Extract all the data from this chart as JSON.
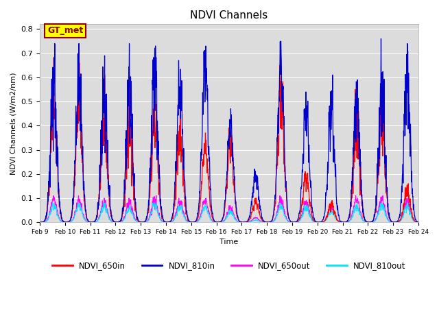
{
  "title": "NDVI Channels",
  "xlabel": "Time",
  "ylabel": "NDVI Channels (W/m2/nm)",
  "ylim": [
    0.0,
    0.82
  ],
  "yticks": [
    0.0,
    0.1,
    0.2,
    0.3,
    0.4,
    0.5,
    0.6,
    0.7,
    0.8
  ],
  "bg_color": "#dcdcdc",
  "annotation_text": "GT_met",
  "annotation_bg": "#ffff00",
  "annotation_border": "#8b0000",
  "colors": {
    "NDVI_650in": "#ff0000",
    "NDVI_810in": "#0000cd",
    "NDVI_650out": "#ff00ff",
    "NDVI_810out": "#00e5ff"
  },
  "date_labels": [
    "Feb 9",
    "Feb 10",
    "Feb 11",
    "Feb 12",
    "Feb 13",
    "Feb 14",
    "Feb 15",
    "Feb 16",
    "Feb 17",
    "Feb 18",
    "Feb 19",
    "Feb 20",
    "Feb 21",
    "Feb 22",
    "Feb 23",
    "Feb 24"
  ],
  "peak_810in": [
    0.74,
    0.74,
    0.69,
    0.74,
    0.73,
    0.67,
    0.73,
    0.47,
    0.22,
    0.75,
    0.54,
    0.61,
    0.59,
    0.76,
    0.74,
    0.0
  ],
  "peak_650in": [
    0.68,
    0.66,
    0.61,
    0.6,
    0.55,
    0.5,
    0.37,
    0.39,
    0.1,
    0.65,
    0.21,
    0.09,
    0.55,
    0.51,
    0.16,
    0.0
  ],
  "peak_650out": [
    0.11,
    0.11,
    0.1,
    0.1,
    0.11,
    0.1,
    0.1,
    0.07,
    0.02,
    0.11,
    0.09,
    0.08,
    0.11,
    0.11,
    0.1,
    0.0
  ],
  "peak_810out": [
    0.08,
    0.08,
    0.08,
    0.07,
    0.08,
    0.07,
    0.07,
    0.05,
    0.01,
    0.08,
    0.07,
    0.06,
    0.08,
    0.08,
    0.08,
    0.0
  ],
  "figsize": [
    6.4,
    4.8
  ],
  "dpi": 100
}
